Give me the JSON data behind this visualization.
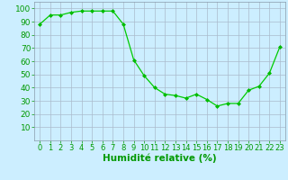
{
  "x": [
    0,
    1,
    2,
    3,
    4,
    5,
    6,
    7,
    8,
    9,
    10,
    11,
    12,
    13,
    14,
    15,
    16,
    17,
    18,
    19,
    20,
    21,
    22,
    23
  ],
  "y": [
    88,
    95,
    95,
    97,
    98,
    98,
    98,
    98,
    88,
    61,
    49,
    40,
    35,
    34,
    32,
    35,
    31,
    26,
    28,
    28,
    38,
    41,
    51,
    71
  ],
  "xlabel": "Humidité relative (%)",
  "line_color": "#00cc00",
  "marker_color": "#00bb00",
  "bg_color": "#cceeff",
  "grid_color": "#aabbcc",
  "ylim": [
    0,
    105
  ],
  "xlim": [
    -0.5,
    23.5
  ],
  "yticks": [
    10,
    20,
    30,
    40,
    50,
    60,
    70,
    80,
    90,
    100
  ],
  "xticks": [
    0,
    1,
    2,
    3,
    4,
    5,
    6,
    7,
    8,
    9,
    10,
    11,
    12,
    13,
    14,
    15,
    16,
    17,
    18,
    19,
    20,
    21,
    22,
    23
  ],
  "xlabel_color": "#009900",
  "tick_color": "#009900",
  "font_size": 6.5,
  "xlabel_size": 7.5
}
